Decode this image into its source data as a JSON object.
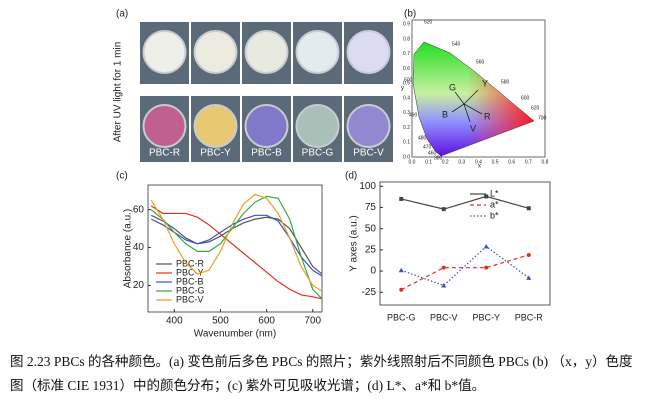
{
  "panel_labels": [
    "(a)",
    "(b)",
    "(c)",
    "(d)"
  ],
  "photos": {
    "side_label": "After UV light for 1 min",
    "labels": [
      "PBC-R",
      "PBC-Y",
      "PBC-B",
      "PBC-G",
      "PBC-V"
    ]
  },
  "cie": {
    "points": [
      "G",
      "Y",
      "B",
      "V",
      "R"
    ],
    "wavelengths": [
      "520",
      "540",
      "560",
      "580",
      "600",
      "620",
      "700",
      "500",
      "490",
      "480",
      "470",
      "460",
      "380"
    ],
    "xtick_labels": [
      "0.0",
      "0.1",
      "0.2",
      "0.3",
      "0.4",
      "0.5",
      "0.6",
      "0.7",
      "0.8"
    ],
    "ytick_labels": [
      "0.0",
      "0.1",
      "0.2",
      "0.3",
      "0.4",
      "0.5",
      "0.6",
      "0.7",
      "0.8",
      "0.9"
    ],
    "xlabel": "x",
    "ylabel": "y"
  },
  "chart_data": [
    {
      "type": "line",
      "xlabel": "Wavenumber (nm)",
      "ylabel": "Absorbance (a.u.)",
      "x": [
        350,
        375,
        400,
        425,
        450,
        475,
        500,
        525,
        550,
        575,
        600,
        625,
        650,
        675,
        700,
        720
      ],
      "xlim": [
        343,
        720
      ],
      "ylim": [
        6,
        73
      ],
      "xticks": [
        400,
        500,
        600,
        700
      ],
      "yticks": [
        20,
        40,
        60
      ],
      "legend": "lower-left",
      "series": [
        {
          "name": "PBC-R",
          "color": "#555555",
          "values": [
            57,
            54,
            50,
            45,
            42,
            43,
            46,
            50,
            53,
            55,
            56,
            55,
            50,
            40,
            30,
            26
          ]
        },
        {
          "name": "PBC-Y",
          "color": "#e0301e",
          "values": [
            62,
            58,
            58,
            58,
            56,
            52,
            47,
            42,
            37,
            32,
            27,
            22,
            18,
            15,
            14,
            13
          ]
        },
        {
          "name": "PBC-B",
          "color": "#3a4fd0",
          "values": [
            55,
            52,
            48,
            44,
            42,
            44,
            48,
            52,
            55,
            57,
            57,
            54,
            45,
            35,
            28,
            25
          ]
        },
        {
          "name": "PBC-G",
          "color": "#3aa845",
          "values": [
            60,
            55,
            48,
            42,
            38,
            38,
            42,
            50,
            58,
            64,
            67,
            66,
            55,
            35,
            18,
            13
          ]
        },
        {
          "name": "PBC-V",
          "color": "#e8a020",
          "values": [
            65,
            55,
            42,
            32,
            26,
            28,
            38,
            52,
            63,
            68,
            66,
            58,
            45,
            30,
            20,
            17
          ]
        }
      ]
    },
    {
      "type": "line",
      "ylabel": "Y axes (a.u.)",
      "categories": [
        "PBC-G",
        "PBC-V",
        "PBC-Y",
        "PBC-R"
      ],
      "ylim": [
        -40,
        105
      ],
      "yticks": [
        -25,
        0,
        25,
        50,
        75,
        100
      ],
      "legend": "upper-right",
      "series": [
        {
          "name": "L*",
          "color": "#444444",
          "marker": "square",
          "dash": "solid",
          "values": [
            85,
            73,
            88,
            74
          ]
        },
        {
          "name": "a*",
          "color": "#e0301e",
          "marker": "circle",
          "dash": "dashed",
          "values": [
            -22,
            4,
            4,
            19
          ]
        },
        {
          "name": "b*",
          "color": "#3a4fd0",
          "marker": "triangle",
          "dash": "dotted",
          "values": [
            1,
            -17,
            29,
            -8
          ]
        }
      ]
    }
  ],
  "caption": "图 2.23 PBCs 的各种颜色。(a) 变色前后多色 PBCs 的照片；紫外线照射后不同颜色 PBCs (b) （x，y）色度图（标准 CIE 1931）中的颜色分布；(c) 紫外可见吸收光谱；(d) L*、a*和 b*值。"
}
